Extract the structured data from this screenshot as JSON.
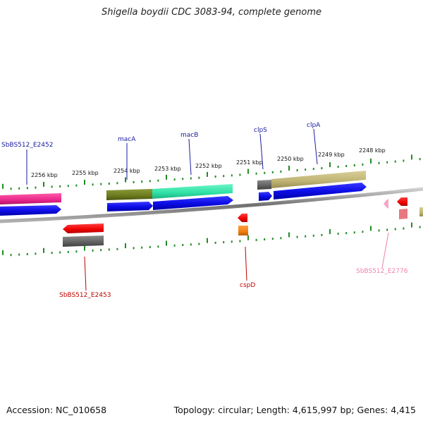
{
  "title": "Shigella boydii CDC 3083-94, complete genome",
  "footer": {
    "accession": "Accession: NC_010658",
    "summary": "Topology: circular; Length: 4,615,997 bp; Genes: 4,415"
  },
  "scale_labels": [
    "2256 kbp",
    "2255 kbp",
    "2254 kbp",
    "2253 kbp",
    "2252 kbp",
    "2251 kbp",
    "2250 kbp",
    "2249 kbp",
    "2248 kbp"
  ],
  "gene_labels": {
    "SbBS512_E2452": "SbBS512_E2452",
    "macA": "macA",
    "macB": "macB",
    "clpS": "clpS",
    "clpA": "clpA",
    "SbBS512_E2453": "SbBS512_E2453",
    "cspD": "cspD",
    "SbBS512_E2776": "SbBS512_E2776"
  },
  "colors": {
    "backbone": "#808080",
    "cds": "#1010ee",
    "tick": "#228b22",
    "label_blue": "#1a1aa0",
    "label_red": "#c00000",
    "label_pink": "#f080b0"
  }
}
